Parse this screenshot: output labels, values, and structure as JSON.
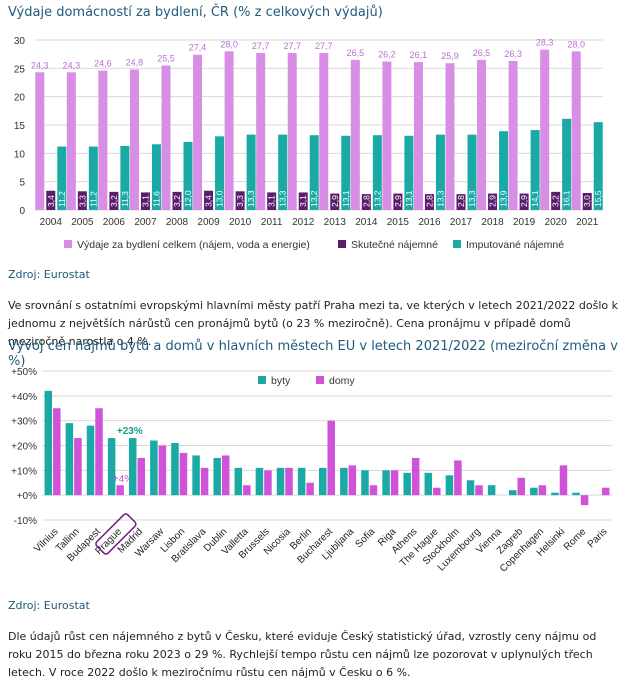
{
  "chart_data": [
    {
      "type": "bar",
      "title": "Výdaje domácností za bydlení, ČR (% z celkových výdajů)",
      "categories": [
        "2004",
        "2005",
        "2006",
        "2007",
        "2008",
        "2009",
        "2010",
        "2011",
        "2012",
        "2013",
        "2014",
        "2015",
        "2016",
        "2017",
        "2018",
        "2019",
        "2020",
        "2021"
      ],
      "series": [
        {
          "name": "Výdaje za bydlení celkem (nájem, voda a energie)",
          "color": "#d98ee6",
          "label_color": "#b86fd0",
          "values": [
            24.3,
            24.3,
            24.6,
            24.8,
            25.5,
            27.4,
            28.0,
            27.7,
            27.7,
            27.7,
            26.5,
            26.2,
            26.1,
            25.9,
            26.5,
            26.3,
            28.3,
            28.0
          ],
          "labels": [
            "24,3",
            "24,3",
            "24,6",
            "24,8",
            "25,5",
            "27,4",
            "28,0",
            "27,7",
            "27,7",
            "27,7",
            "26,5",
            "26,2",
            "26,1",
            "25,9",
            "26,5",
            "26,3",
            "28,3",
            "28,0"
          ]
        },
        {
          "name": "Skutečné nájemné",
          "color": "#5a1d6e",
          "label_color": "#ffffff",
          "values": [
            3.4,
            3.3,
            3.2,
            3.1,
            3.2,
            3.4,
            3.3,
            3.1,
            3.1,
            2.9,
            2.8,
            2.9,
            2.8,
            2.8,
            2.9,
            2.9,
            3.2,
            3.0
          ],
          "labels": [
            "3,4",
            "3,3",
            "3,2",
            "3,1",
            "3,2",
            "3,4",
            "3,3",
            "3,1",
            "3,1",
            "2,9",
            "2,8",
            "2,9",
            "2,8",
            "2,8",
            "2,9",
            "2,9",
            "3,2",
            "3,0"
          ]
        },
        {
          "name": "Imputované nájemné",
          "color": "#1aa9a5",
          "label_color": "#ffffff",
          "values": [
            11.2,
            11.2,
            11.3,
            11.6,
            12.0,
            13.0,
            13.3,
            13.3,
            13.2,
            13.1,
            13.2,
            13.1,
            13.3,
            13.3,
            13.9,
            14.1,
            16.1,
            15.5
          ],
          "labels": [
            "11,2",
            "11,2",
            "11,3",
            "11,6",
            "12,0",
            "13,0",
            "13,3",
            "13,3",
            "13,2",
            "13,1",
            "13,2",
            "13,1",
            "13,3",
            "13,3",
            "13,9",
            "14,1",
            "16,1",
            "15,5"
          ]
        }
      ],
      "yticks": [
        "0",
        "5",
        "10",
        "15",
        "20",
        "25",
        "30"
      ],
      "ylim": [
        0,
        30
      ],
      "legend": "bottom"
    },
    {
      "type": "bar",
      "title": "Vývoj cen nájmů bytů a domů v hlavních městech EU v letech 2021/2022 (meziroční změna v %)",
      "categories": [
        "Vilnius",
        "Tallinn",
        "Budapest",
        "Prague",
        "Madrid",
        "Warsaw",
        "Lisbon",
        "Bratislava",
        "Dublin",
        "Valletta",
        "Brussels",
        "Nicosia",
        "Berlin",
        "Bucharest",
        "Ljubljana",
        "Sofia",
        "Riga",
        "Athens",
        "The Hague",
        "Stockholm",
        "Luxembourg",
        "Vienna",
        "Zagreb",
        "Copenhagen",
        "Helsinki",
        "Rome",
        "Paris"
      ],
      "series": [
        {
          "name": "byty",
          "color": "#1aa9a5",
          "values": [
            42,
            29,
            28,
            23,
            23,
            22,
            21,
            16,
            15,
            11,
            11,
            11,
            11,
            11,
            11,
            10,
            10,
            9,
            9,
            8,
            6,
            4,
            2,
            3,
            1,
            1,
            0
          ]
        },
        {
          "name": "domy",
          "color": "#cf52d8",
          "values": [
            35,
            23,
            35,
            4,
            15,
            20,
            17,
            11,
            16,
            4,
            10,
            11,
            5,
            30,
            12,
            4,
            10,
            15,
            3,
            14,
            4,
            0,
            7,
            4,
            12,
            -4,
            3
          ]
        }
      ],
      "yticks": [
        "+50%",
        "+40%",
        "+30%",
        "+20%",
        "+10%",
        "+0%",
        "-10%"
      ],
      "ylim": [
        -10,
        50
      ],
      "legend": "top",
      "highlight": {
        "category": "Prague",
        "byty_label": "+23%",
        "domy_label": "+4%"
      }
    }
  ],
  "text": {
    "source1": "Zdroj: Eurostat",
    "paragraph1": "Ve srovnání s ostatními evropskými hlavními městy patří Praha mezi ta, ve kterých v letech 2021/2022 došlo k jednomu z největších nárůstů cen pronájmů bytů (o 23 % meziročně). Cena pronájmu v případě domů meziročně narostla o 4 %.",
    "source2": "Zdroj: Eurostat",
    "paragraph2": "Dle údajů růst cen nájemného z bytů v Česku, které eviduje Český statistický úřad, vzrostly ceny nájmu od roku 2015 do března roku 2023 o 29 %. Rychlejší tempo růstu cen nájmů lze pozorovat v uplynulých třech letech. V roce 2022 došlo k meziročnímu růstu cen nájmů v Česku o 6 %."
  }
}
